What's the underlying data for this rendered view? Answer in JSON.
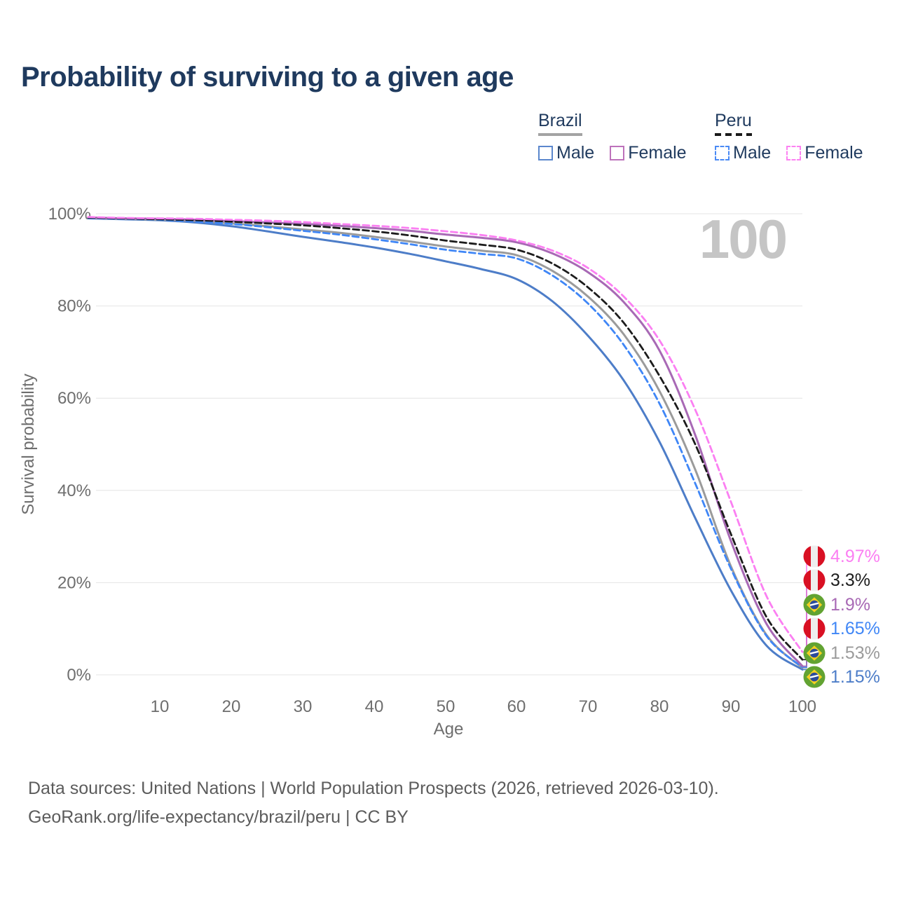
{
  "title": "Probability of surviving to a given age",
  "watermark": "100",
  "legend": {
    "groups": [
      {
        "country": "Brazil",
        "line_style": "solid",
        "underline_color": "#a3a3a3",
        "items": [
          {
            "label": "Male",
            "color": "#5b87cd"
          },
          {
            "label": "Female",
            "color": "#bd72bb"
          }
        ]
      },
      {
        "country": "Peru",
        "line_style": "dashed",
        "underline_color": "#1a1a1a",
        "items": [
          {
            "label": "Male",
            "color": "#4a8af5"
          },
          {
            "label": "Female",
            "color": "#fc82f2"
          }
        ]
      }
    ]
  },
  "chart_data": {
    "type": "line",
    "title": "Probability of surviving to a given age",
    "xlabel": "Age",
    "ylabel": "Survival probability",
    "xlim": [
      0,
      100
    ],
    "ylim": [
      0,
      100
    ],
    "grid": "horizontal",
    "x_ticks": [
      "10",
      "20",
      "30",
      "40",
      "50",
      "60",
      "70",
      "80",
      "90",
      "100"
    ],
    "y_ticks": [
      "0%",
      "20%",
      "40%",
      "60%",
      "80%",
      "100%"
    ],
    "ages": [
      0,
      5,
      10,
      15,
      20,
      25,
      30,
      35,
      40,
      45,
      50,
      55,
      60,
      65,
      70,
      75,
      80,
      85,
      90,
      95,
      100
    ],
    "series": [
      {
        "name": "Peru Female",
        "country": "peru",
        "sex": "female",
        "color": "#fb7ff2",
        "dashed": true,
        "end_label": "4.97%",
        "values": [
          99.3,
          99.1,
          99.0,
          98.9,
          98.7,
          98.5,
          98.2,
          97.8,
          97.4,
          96.9,
          96.2,
          95.4,
          94.2,
          92.0,
          88.2,
          82.0,
          72.5,
          57.5,
          37.5,
          17.0,
          4.97
        ]
      },
      {
        "name": "Peru",
        "country": "peru",
        "sex": "both",
        "color": "#1c1c1c",
        "dashed": true,
        "end_label": "3.3%",
        "values": [
          99.2,
          99.0,
          98.8,
          98.6,
          98.3,
          97.9,
          97.5,
          96.9,
          96.2,
          95.3,
          94.2,
          93.3,
          92.2,
          89.2,
          84.0,
          76.3,
          64.8,
          50.0,
          30.5,
          12.5,
          3.3
        ]
      },
      {
        "name": "Brazil Female",
        "country": "brazil",
        "sex": "female",
        "color": "#a869b5",
        "dashed": false,
        "end_label": "1.9%",
        "values": [
          99.2,
          99.0,
          98.9,
          98.7,
          98.4,
          98.1,
          97.8,
          97.4,
          96.9,
          96.3,
          95.5,
          94.8,
          93.8,
          91.4,
          87.3,
          80.8,
          70.3,
          52.0,
          29.0,
          11.0,
          1.9
        ]
      },
      {
        "name": "Peru Male",
        "country": "peru",
        "sex": "male",
        "color": "#3f86f6",
        "dashed": true,
        "end_label": "1.65%",
        "values": [
          99.1,
          98.9,
          98.7,
          98.3,
          97.8,
          97.1,
          96.3,
          95.5,
          94.5,
          93.4,
          92.2,
          91.3,
          90.3,
          86.6,
          80.5,
          71.5,
          58.8,
          41.5,
          23.0,
          8.4,
          1.65
        ]
      },
      {
        "name": "Brazil",
        "country": "brazil",
        "sex": "both",
        "color": "#9b9b9b",
        "dashed": false,
        "end_label": "1.53%",
        "values": [
          99.1,
          98.9,
          98.7,
          98.4,
          97.9,
          97.3,
          96.6,
          95.9,
          95.0,
          94.0,
          92.9,
          92.0,
          91.0,
          87.6,
          82.0,
          73.8,
          61.5,
          44.5,
          23.5,
          8.6,
          1.53
        ]
      },
      {
        "name": "Brazil Male",
        "country": "brazil",
        "sex": "male",
        "color": "#4d7dc8",
        "dashed": false,
        "end_label": "1.15%",
        "values": [
          99.0,
          98.8,
          98.6,
          98.1,
          97.3,
          96.2,
          95.0,
          93.9,
          92.7,
          91.3,
          89.7,
          88.0,
          85.8,
          81.0,
          73.5,
          63.8,
          50.5,
          34.0,
          18.3,
          6.3,
          1.15
        ]
      }
    ]
  },
  "footer": {
    "line1": "Data sources: United Nations | World Population Prospects (2026, retrieved 2026-03-10).",
    "line2": "GeoRank.org/life-expectancy/brazil/peru | CC BY"
  }
}
